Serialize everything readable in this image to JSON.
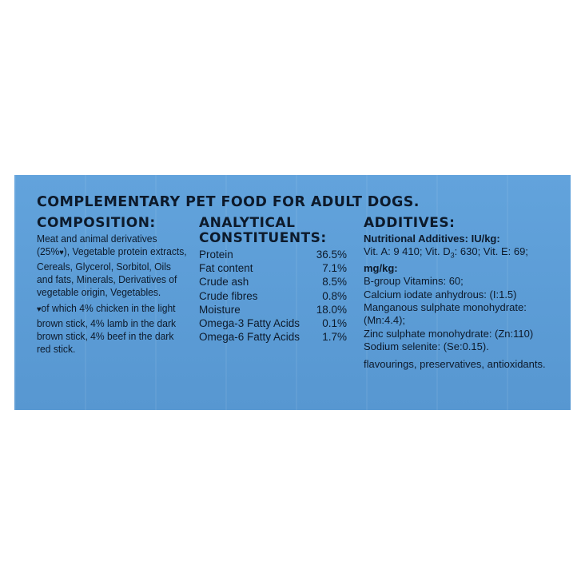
{
  "title": "COMPLEMENTARY PET FOOD FOR ADULT DOGS.",
  "composition": {
    "heading": "COMPOSITION:",
    "text_before_heart": "Meat and animal derivatives (25%",
    "heart": "♥",
    "text_after_heart": "), Vegetable protein extracts, Cereals, Glycerol, Sorbitol, Oils and fats, Minerals, Derivatives of vegetable origin, Vegetables.",
    "note_text": "of which 4% chicken in the light brown stick, 4% lamb in the dark brown stick, 4% beef in the dark red stick."
  },
  "analytical": {
    "heading_line1": "ANALYTICAL",
    "heading_line2": "CONSTITUENTS:",
    "rows": [
      {
        "name": "Protein",
        "value": "36.5%"
      },
      {
        "name": "Fat content",
        "value": "7.1%"
      },
      {
        "name": "Crude ash",
        "value": "8.5%"
      },
      {
        "name": "Crude fibres",
        "value": "0.8%"
      },
      {
        "name": "Moisture",
        "value": "18.0%"
      },
      {
        "name": "Omega-3 Fatty Acids",
        "value": "0.1%"
      },
      {
        "name": "Omega-6 Fatty Acids",
        "value": "1.7%"
      }
    ]
  },
  "additives": {
    "heading": "ADDITIVES:",
    "nutritional_heading": "Nutritional Additives: IU/kg:",
    "vitamins_a_prefix": "Vit. A: 9 410; Vit. D",
    "vitamins_d_sub": "3",
    "vitamins_suffix": ": 630; Vit. E: 69;",
    "mgkg_heading": "mg/kg:",
    "lines": [
      "B-group Vitamins: 60;",
      "Calcium iodate anhydrous: (I:1.5)",
      "Manganous sulphate monohydrate:",
      "(Mn:4.4);",
      "Zinc sulphate monohydrate: (Zn:110)",
      "Sodium selenite: (Se:0.15)."
    ],
    "footer": "flavourings, preservatives, antioxidants."
  }
}
